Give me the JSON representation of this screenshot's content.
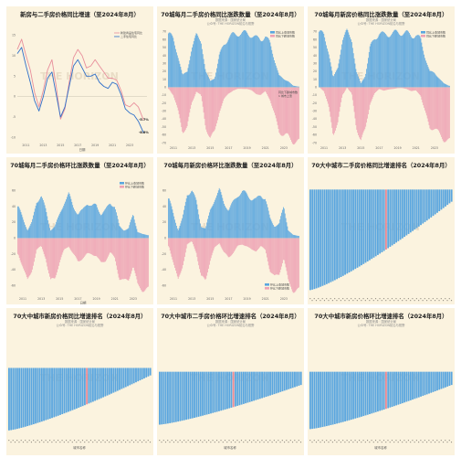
{
  "colors": {
    "panel_bg": "#fbf3df",
    "blue": "#5aa6df",
    "pink": "#eea3b4",
    "zero": "#d9d2c3",
    "line_new": "#e88e9b",
    "line_second": "#2e6fc9",
    "highlight": "#e68896",
    "watermark": "#e9ddc6"
  },
  "watermark": "THE HORIZON",
  "chart_data": [
    {
      "type": "line",
      "title": "新房与二手房价格同比增速（至2024年8月）",
      "subtitle": [],
      "xlabel": "日期",
      "ylabel": "",
      "x_ticks": [
        "2011",
        "2013",
        "2015",
        "2017",
        "2019",
        "2021",
        "2023"
      ],
      "y_ticks": [
        "-10",
        "-5",
        "0",
        "5",
        "10",
        "15"
      ],
      "ylim": [
        -11,
        18
      ],
      "annotations": [
        "-5.7%",
        "-8.8%"
      ],
      "series": [
        {
          "name": "新建商品住宅同比",
          "color": "#e88e9b",
          "x": [
            2010.0,
            2010.5,
            2011.0,
            2011.5,
            2012.0,
            2012.5,
            2013.0,
            2013.5,
            2014.0,
            2014.5,
            2015.0,
            2015.5,
            2016.0,
            2016.5,
            2017.0,
            2017.5,
            2018.0,
            2018.5,
            2019.0,
            2019.5,
            2020.0,
            2020.5,
            2021.0,
            2021.5,
            2022.0,
            2022.5,
            2023.0,
            2023.5,
            2024.0,
            2024.6
          ],
          "values": [
            11.5,
            14.0,
            10.0,
            6.5,
            1.0,
            -2.5,
            1.5,
            6.5,
            9.0,
            2.5,
            -5.5,
            -3.0,
            3.5,
            9.5,
            11.5,
            10.0,
            7.0,
            7.5,
            9.0,
            7.5,
            6.0,
            4.5,
            4.5,
            4.0,
            1.5,
            -2.0,
            -2.5,
            -1.5,
            -2.5,
            -5.7
          ]
        },
        {
          "name": "二手住宅同比",
          "color": "#2e6fc9",
          "x": [
            2010.0,
            2010.5,
            2011.0,
            2011.5,
            2012.0,
            2012.5,
            2013.0,
            2013.5,
            2014.0,
            2014.5,
            2015.0,
            2015.5,
            2016.0,
            2016.5,
            2017.0,
            2017.5,
            2018.0,
            2018.5,
            2019.0,
            2019.5,
            2020.0,
            2020.5,
            2021.0,
            2021.5,
            2022.0,
            2022.5,
            2023.0,
            2023.5,
            2024.0,
            2024.6
          ],
          "values": [
            10.5,
            12.0,
            7.5,
            3.5,
            -1.0,
            -3.5,
            0.0,
            4.5,
            6.0,
            0.5,
            -5.0,
            -2.5,
            2.5,
            7.5,
            9.0,
            7.0,
            5.0,
            5.0,
            5.5,
            3.5,
            2.5,
            2.0,
            3.5,
            3.0,
            0.5,
            -3.0,
            -4.0,
            -4.5,
            -6.0,
            -8.8
          ]
        }
      ]
    },
    {
      "type": "bar",
      "title": "70城每月二手房价格同比涨跌数量（至2024年8月）",
      "subtitle": [
        "数据来源：国家统计局",
        "公众号: THE HORIZON前沿与视野"
      ],
      "x_ticks": [
        "2011",
        "2013",
        "2015",
        "2017",
        "2019",
        "2021",
        "2023"
      ],
      "y_ticks": [
        "70",
        "60",
        "50",
        "40",
        "30",
        "20",
        "10",
        "0",
        "-10",
        "-20",
        "-30",
        "-40",
        "-50",
        "-60",
        "-70"
      ],
      "ylim": [
        -72,
        72
      ],
      "legend_position": "top-right",
      "annotations": [
        "同比下跌城市数",
        "1 城市上涨"
      ],
      "series": [
        {
          "name": "同比上涨城市数",
          "color": "#5aa6df",
          "x": [
            2010.5,
            2011.0,
            2011.5,
            2012.0,
            2012.5,
            2013.0,
            2013.5,
            2014.0,
            2014.5,
            2015.0,
            2015.5,
            2016.0,
            2016.5,
            2017.0,
            2017.5,
            2018.0,
            2018.5,
            2019.0,
            2019.5,
            2020.0,
            2020.5,
            2021.0,
            2021.5,
            2022.0,
            2022.5,
            2023.0,
            2023.5,
            2024.0,
            2024.6
          ],
          "values": [
            68,
            60,
            40,
            15,
            20,
            50,
            65,
            60,
            20,
            8,
            12,
            40,
            55,
            62,
            66,
            68,
            68,
            68,
            66,
            62,
            60,
            65,
            55,
            35,
            15,
            10,
            8,
            2,
            1
          ]
        },
        {
          "name": "同比下跌城市数",
          "color": "#eea3b4",
          "x": [
            2010.5,
            2011.0,
            2011.5,
            2012.0,
            2012.5,
            2013.0,
            2013.5,
            2014.0,
            2014.5,
            2015.0,
            2015.5,
            2016.0,
            2016.5,
            2017.0,
            2017.5,
            2018.0,
            2018.5,
            2019.0,
            2019.5,
            2020.0,
            2020.5,
            2021.0,
            2021.5,
            2022.0,
            2022.5,
            2023.0,
            2023.5,
            2024.0,
            2024.6
          ],
          "values": [
            -2,
            -10,
            -30,
            -55,
            -50,
            -20,
            -5,
            -10,
            -50,
            -62,
            -58,
            -30,
            -15,
            -8,
            -4,
            -2,
            -2,
            -2,
            -4,
            -8,
            -10,
            -5,
            -15,
            -35,
            -55,
            -60,
            -62,
            -68,
            -69
          ]
        }
      ]
    },
    {
      "type": "bar",
      "title": "70城每月新房价格同比涨跌数量（至2024年8月）",
      "subtitle": [
        "数据来源：国家统计局",
        "公众号: THE HORIZON前沿与视野"
      ],
      "x_ticks": [
        "2011",
        "2013",
        "2015",
        "2017",
        "2019",
        "2021",
        "2023"
      ],
      "y_ticks": [
        "70",
        "60",
        "50",
        "40",
        "30",
        "20",
        "10",
        "0",
        "-10",
        "-20",
        "-30",
        "-40",
        "-50",
        "-60",
        "-70"
      ],
      "ylim": [
        -72,
        72
      ],
      "legend_position": "top-right",
      "series": [
        {
          "name": "同比上涨城市数",
          "color": "#5aa6df",
          "x": [
            2010.5,
            2011.0,
            2011.5,
            2012.0,
            2012.5,
            2013.0,
            2013.5,
            2014.0,
            2014.5,
            2015.0,
            2015.5,
            2016.0,
            2016.5,
            2017.0,
            2017.5,
            2018.0,
            2018.5,
            2019.0,
            2019.5,
            2020.0,
            2020.5,
            2021.0,
            2021.5,
            2022.0,
            2022.5,
            2023.0,
            2023.5,
            2024.0,
            2024.6
          ],
          "values": [
            70,
            65,
            45,
            12,
            25,
            60,
            70,
            62,
            20,
            5,
            15,
            50,
            62,
            68,
            66,
            67,
            68,
            69,
            69,
            68,
            65,
            66,
            60,
            38,
            20,
            18,
            12,
            5,
            2
          ]
        },
        {
          "name": "同比下跌城市数",
          "color": "#eea3b4",
          "x": [
            2010.5,
            2011.0,
            2011.5,
            2012.0,
            2012.5,
            2013.0,
            2013.5,
            2014.0,
            2014.5,
            2015.0,
            2015.5,
            2016.0,
            2016.5,
            2017.0,
            2017.5,
            2018.0,
            2018.5,
            2019.0,
            2019.5,
            2020.0,
            2020.5,
            2021.0,
            2021.5,
            2022.0,
            2022.5,
            2023.0,
            2023.5,
            2024.0,
            2024.6
          ],
          "values": [
            0,
            -5,
            -25,
            -58,
            -45,
            -10,
            0,
            -8,
            -50,
            -65,
            -55,
            -20,
            -8,
            -2,
            -4,
            -3,
            -2,
            -1,
            -1,
            -2,
            -5,
            -4,
            -10,
            -32,
            -50,
            -52,
            -58,
            -65,
            -68
          ]
        }
      ]
    },
    {
      "type": "bar",
      "title": "70城每月二手房价格环比涨跌数量（至2024年8月）",
      "subtitle": [],
      "xlabel": "日期",
      "x_ticks": [
        "2011",
        "2013",
        "2015",
        "2017",
        "2019",
        "2021",
        "2023"
      ],
      "y_ticks": [
        "60",
        "40",
        "20",
        "0",
        "-20",
        "-40",
        "-60"
      ],
      "ylim": [
        -72,
        72
      ],
      "legend_position": "top-right",
      "series": [
        {
          "name": "环比上涨城市数",
          "color": "#5aa6df",
          "x": [
            2010.5,
            2011.0,
            2011.5,
            2012.0,
            2012.5,
            2013.0,
            2013.5,
            2014.0,
            2014.5,
            2015.0,
            2015.5,
            2016.0,
            2016.5,
            2017.0,
            2017.5,
            2018.0,
            2018.5,
            2019.0,
            2019.5,
            2020.0,
            2020.5,
            2021.0,
            2021.5,
            2022.0,
            2022.5,
            2023.0,
            2023.5,
            2024.0,
            2024.6
          ],
          "values": [
            40,
            25,
            10,
            20,
            45,
            55,
            35,
            10,
            15,
            30,
            45,
            55,
            40,
            30,
            35,
            45,
            40,
            42,
            30,
            35,
            45,
            40,
            15,
            10,
            12,
            30,
            8,
            5,
            4
          ]
        },
        {
          "name": "环比下跌城市数",
          "color": "#eea3b4",
          "x": [
            2010.5,
            2011.0,
            2011.5,
            2012.0,
            2012.5,
            2013.0,
            2013.5,
            2014.0,
            2014.5,
            2015.0,
            2015.5,
            2016.0,
            2016.5,
            2017.0,
            2017.5,
            2018.0,
            2018.5,
            2019.0,
            2019.5,
            2020.0,
            2020.5,
            2021.0,
            2021.5,
            2022.0,
            2022.5,
            2023.0,
            2023.5,
            2024.0,
            2024.6
          ],
          "values": [
            -20,
            -35,
            -55,
            -40,
            -15,
            -10,
            -25,
            -55,
            -50,
            -30,
            -15,
            -10,
            -20,
            -30,
            -25,
            -20,
            -20,
            -22,
            -32,
            -28,
            -18,
            -25,
            -50,
            -55,
            -52,
            -35,
            -60,
            -64,
            -65
          ]
        }
      ]
    },
    {
      "type": "bar",
      "title": "70城每月新房价格环比涨跌数量（至2024年8月）",
      "subtitle": [],
      "x_ticks": [
        "2011",
        "2013",
        "2015",
        "2017",
        "2019",
        "2021",
        "2023"
      ],
      "y_ticks": [
        "60",
        "40",
        "20",
        "0",
        "-20",
        "-40",
        "-60"
      ],
      "ylim": [
        -72,
        72
      ],
      "legend_position": "bottom-right",
      "series": [
        {
          "name": "环比上涨城市数",
          "color": "#5aa6df",
          "x": [
            2010.5,
            2011.0,
            2011.5,
            2012.0,
            2012.5,
            2013.0,
            2013.5,
            2014.0,
            2014.5,
            2015.0,
            2015.5,
            2016.0,
            2016.5,
            2017.0,
            2017.5,
            2018.0,
            2018.5,
            2019.0,
            2019.5,
            2020.0,
            2020.5,
            2021.0,
            2021.5,
            2022.0,
            2022.5,
            2023.0,
            2023.5,
            2024.0,
            2024.6
          ],
          "values": [
            50,
            30,
            10,
            25,
            55,
            62,
            45,
            15,
            12,
            35,
            50,
            60,
            45,
            35,
            45,
            55,
            58,
            55,
            50,
            48,
            55,
            50,
            25,
            15,
            18,
            40,
            10,
            4,
            3
          ]
        },
        {
          "name": "环比下跌城市数",
          "color": "#eea3b4",
          "x": [
            2010.5,
            2011.0,
            2011.5,
            2012.0,
            2012.5,
            2013.0,
            2013.5,
            2014.0,
            2014.5,
            2015.0,
            2015.5,
            2016.0,
            2016.5,
            2017.0,
            2017.5,
            2018.0,
            2018.5,
            2019.0,
            2019.5,
            2020.0,
            2020.5,
            2021.0,
            2021.5,
            2022.0,
            2022.5,
            2023.0,
            2023.5,
            2024.0,
            2024.6
          ],
          "values": [
            -10,
            -30,
            -55,
            -35,
            -8,
            -4,
            -18,
            -50,
            -52,
            -28,
            -12,
            -6,
            -18,
            -25,
            -18,
            -10,
            -8,
            -10,
            -15,
            -16,
            -10,
            -15,
            -40,
            -50,
            -45,
            -25,
            -55,
            -65,
            -66
          ]
        }
      ]
    },
    {
      "type": "bar",
      "title": "70大中城市二手房价格同比增速排名（2024年8月）",
      "subtitle": [],
      "ylim": [
        -14,
        1
      ],
      "n_cities": 70,
      "rank_range": [
        -13.2,
        -1.6
      ],
      "highlight_index": 37
    },
    {
      "type": "bar",
      "title": "70大中城市新房价格同比增速排名（2024年8月）",
      "subtitle": [
        "数据来源：国家统计局",
        "公众号: THE HORIZON前沿与视野"
      ],
      "xlabel": "城市名称",
      "ylim": [
        -14,
        1
      ],
      "n_cities": 70,
      "rank_range": [
        -12.5,
        -1.5
      ],
      "highlight_index": 38
    },
    {
      "type": "bar",
      "title": "70大中城市二手房价格环比增速排名（2024年8月）",
      "subtitle": [
        "数据来源：国家统计局",
        "公众号: THE HORIZON前沿与视野"
      ],
      "xlabel": "城市名称",
      "ylim": [
        -1.5,
        0.2
      ],
      "n_cities": 70,
      "rank_range": [
        -1.2,
        -0.3
      ],
      "highlight_index": 36
    },
    {
      "type": "bar",
      "title": "70大中城市新房价格环比增速排名（2024年8月）",
      "subtitle": [
        "数据来源：国家统计局",
        "公众号: THE HORIZON前沿与视野"
      ],
      "xlabel": "城市名称",
      "ylim": [
        -1.5,
        0.2
      ],
      "n_cities": 70,
      "rank_range": [
        -1.3,
        -0.3
      ],
      "highlight_index": 37
    }
  ]
}
